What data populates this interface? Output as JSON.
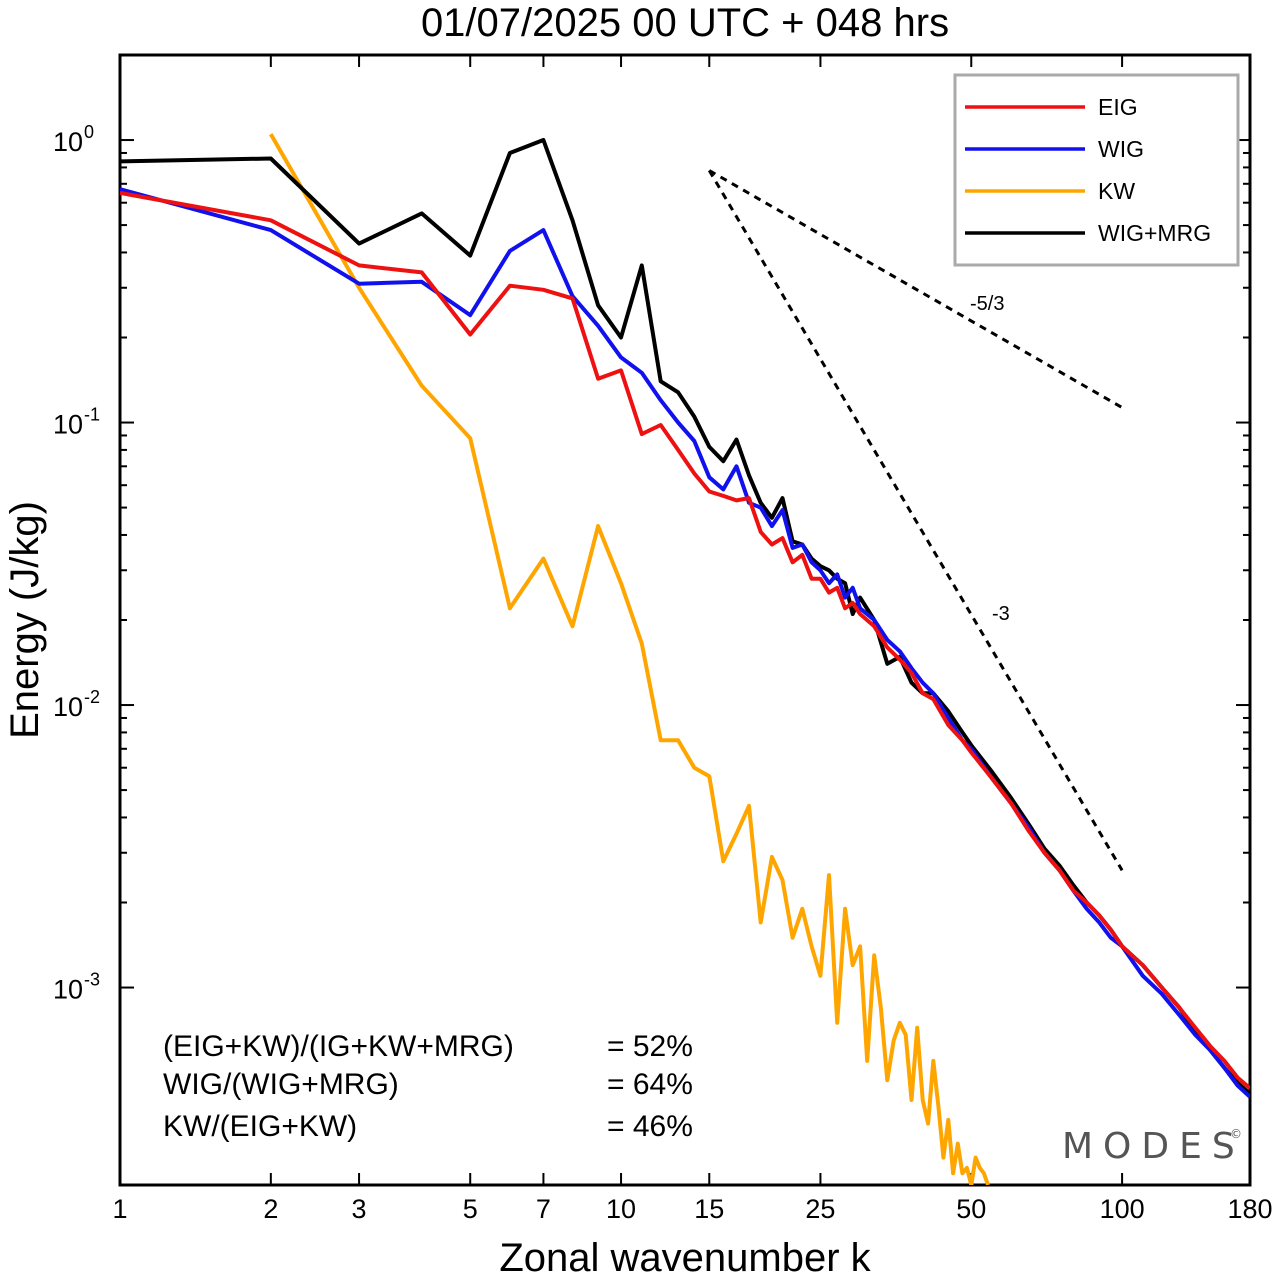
{
  "chart_data": {
    "type": "line",
    "title": "01/07/2025  00 UTC  + 048 hrs",
    "xlabel": "Zonal wavenumber k",
    "ylabel": "Energy (J/kg)",
    "xscale": "log",
    "yscale": "log",
    "xlim": [
      1,
      180
    ],
    "ylim": [
      0.0002,
      2.0
    ],
    "x_ticks": [
      1,
      2,
      3,
      5,
      7,
      10,
      15,
      25,
      50,
      100,
      180
    ],
    "x_tick_labels": [
      "1",
      "2",
      "3",
      "5",
      "7",
      "10",
      "15",
      "25",
      "50",
      "100",
      "180"
    ],
    "y_ticks": [
      {
        "value": 1,
        "base": "10",
        "exp": "0"
      },
      {
        "value": 0.1,
        "base": "10",
        "exp": "-1"
      },
      {
        "value": 0.01,
        "base": "10",
        "exp": "-2"
      },
      {
        "value": 0.001,
        "base": "10",
        "exp": "-3"
      }
    ],
    "legend_position": "top-right",
    "series": [
      {
        "name": "EIG",
        "color": "#ee1111",
        "points": [
          [
            1,
            0.65
          ],
          [
            2,
            0.52
          ],
          [
            3,
            0.36
          ],
          [
            4,
            0.34
          ],
          [
            5,
            0.205
          ],
          [
            6,
            0.305
          ],
          [
            7,
            0.295
          ],
          [
            8,
            0.275
          ],
          [
            9,
            0.143
          ],
          [
            10,
            0.153
          ],
          [
            11,
            0.091
          ],
          [
            12,
            0.098
          ],
          [
            13,
            0.08
          ],
          [
            14,
            0.066
          ],
          [
            15,
            0.057
          ],
          [
            16,
            0.055
          ],
          [
            17,
            0.053
          ],
          [
            18,
            0.054
          ],
          [
            19,
            0.041
          ],
          [
            20,
            0.037
          ],
          [
            21,
            0.039
          ],
          [
            22,
            0.032
          ],
          [
            23,
            0.034
          ],
          [
            24,
            0.028
          ],
          [
            25,
            0.028
          ],
          [
            26,
            0.025
          ],
          [
            27,
            0.026
          ],
          [
            28,
            0.022
          ],
          [
            29,
            0.023
          ],
          [
            30,
            0.021
          ],
          [
            32,
            0.019
          ],
          [
            34,
            0.016
          ],
          [
            36,
            0.0145
          ],
          [
            38,
            0.013
          ],
          [
            40,
            0.011
          ],
          [
            42,
            0.0105
          ],
          [
            45,
            0.0085
          ],
          [
            48,
            0.0075
          ],
          [
            50,
            0.0068
          ],
          [
            55,
            0.0055
          ],
          [
            60,
            0.0045
          ],
          [
            65,
            0.0036
          ],
          [
            70,
            0.003
          ],
          [
            75,
            0.0026
          ],
          [
            80,
            0.0022
          ],
          [
            85,
            0.002
          ],
          [
            90,
            0.0018
          ],
          [
            95,
            0.0016
          ],
          [
            100,
            0.0014
          ],
          [
            110,
            0.0012
          ],
          [
            120,
            0.001
          ],
          [
            130,
            0.00085
          ],
          [
            140,
            0.00072
          ],
          [
            150,
            0.00062
          ],
          [
            160,
            0.00055
          ],
          [
            170,
            0.00048
          ],
          [
            180,
            0.00044
          ]
        ]
      },
      {
        "name": "WIG",
        "color": "#1111ee",
        "points": [
          [
            1,
            0.67
          ],
          [
            2,
            0.48
          ],
          [
            3,
            0.31
          ],
          [
            4,
            0.315
          ],
          [
            5,
            0.24
          ],
          [
            6,
            0.405
          ],
          [
            7,
            0.48
          ],
          [
            8,
            0.28
          ],
          [
            9,
            0.22
          ],
          [
            10,
            0.17
          ],
          [
            11,
            0.15
          ],
          [
            12,
            0.12
          ],
          [
            13,
            0.1
          ],
          [
            14,
            0.086
          ],
          [
            15,
            0.064
          ],
          [
            16,
            0.058
          ],
          [
            17,
            0.07
          ],
          [
            18,
            0.052
          ],
          [
            19,
            0.05
          ],
          [
            20,
            0.043
          ],
          [
            21,
            0.049
          ],
          [
            22,
            0.036
          ],
          [
            23,
            0.037
          ],
          [
            24,
            0.032
          ],
          [
            25,
            0.03
          ],
          [
            26,
            0.027
          ],
          [
            27,
            0.029
          ],
          [
            28,
            0.024
          ],
          [
            29,
            0.026
          ],
          [
            30,
            0.022
          ],
          [
            32,
            0.02
          ],
          [
            34,
            0.017
          ],
          [
            36,
            0.0155
          ],
          [
            38,
            0.0135
          ],
          [
            40,
            0.012
          ],
          [
            42,
            0.011
          ],
          [
            45,
            0.009
          ],
          [
            48,
            0.0075
          ],
          [
            50,
            0.007
          ],
          [
            55,
            0.0055
          ],
          [
            60,
            0.0045
          ],
          [
            65,
            0.0037
          ],
          [
            70,
            0.003
          ],
          [
            75,
            0.0026
          ],
          [
            80,
            0.0022
          ],
          [
            85,
            0.0019
          ],
          [
            90,
            0.0017
          ],
          [
            95,
            0.0015
          ],
          [
            100,
            0.0014
          ],
          [
            110,
            0.0011
          ],
          [
            120,
            0.00095
          ],
          [
            130,
            0.0008
          ],
          [
            140,
            0.00068
          ],
          [
            150,
            0.0006
          ],
          [
            160,
            0.00052
          ],
          [
            170,
            0.00045
          ],
          [
            180,
            0.00041
          ]
        ]
      },
      {
        "name": "KW",
        "color": "#ffa500",
        "points": [
          [
            2,
            1.05
          ],
          [
            3,
            0.3
          ],
          [
            4,
            0.135
          ],
          [
            5,
            0.088
          ],
          [
            6,
            0.022
          ],
          [
            7,
            0.033
          ],
          [
            8,
            0.019
          ],
          [
            9,
            0.043
          ],
          [
            10,
            0.027
          ],
          [
            11,
            0.0165
          ],
          [
            12,
            0.0075
          ],
          [
            13,
            0.0075
          ],
          [
            14,
            0.006
          ],
          [
            15,
            0.0056
          ],
          [
            16,
            0.0028
          ],
          [
            17,
            0.0035
          ],
          [
            18,
            0.0044
          ],
          [
            19,
            0.0017
          ],
          [
            20,
            0.0029
          ],
          [
            21,
            0.0024
          ],
          [
            22,
            0.0015
          ],
          [
            23,
            0.0019
          ],
          [
            24,
            0.0014
          ],
          [
            25,
            0.0011
          ],
          [
            26,
            0.0025
          ],
          [
            27,
            0.00075
          ],
          [
            28,
            0.0019
          ],
          [
            29,
            0.0012
          ],
          [
            30,
            0.0014
          ],
          [
            31,
            0.00055
          ],
          [
            32,
            0.0013
          ],
          [
            33,
            0.00085
          ],
          [
            34,
            0.00047
          ],
          [
            35,
            0.00065
          ],
          [
            36,
            0.00075
          ],
          [
            37,
            0.00068
          ],
          [
            38,
            0.0004
          ],
          [
            39,
            0.00072
          ],
          [
            40,
            0.0004
          ],
          [
            41,
            0.00033
          ],
          [
            42,
            0.00055
          ],
          [
            43,
            0.00038
          ],
          [
            44,
            0.00025
          ],
          [
            45,
            0.00034
          ],
          [
            46,
            0.00022
          ],
          [
            47,
            0.00028
          ],
          [
            48,
            0.00022
          ],
          [
            49,
            0.00023
          ],
          [
            50,
            0.0002
          ],
          [
            51,
            0.00025
          ],
          [
            52,
            0.00023
          ],
          [
            53,
            0.00022
          ],
          [
            54,
            0.0002
          ]
        ]
      },
      {
        "name": "WIG+MRG",
        "color": "#000000",
        "points": [
          [
            1,
            0.84
          ],
          [
            2,
            0.86
          ],
          [
            3,
            0.43
          ],
          [
            4,
            0.55
          ],
          [
            5,
            0.39
          ],
          [
            6,
            0.9
          ],
          [
            7,
            1.0
          ],
          [
            8,
            0.52
          ],
          [
            9,
            0.26
          ],
          [
            10,
            0.2
          ],
          [
            11,
            0.36
          ],
          [
            12,
            0.14
          ],
          [
            13,
            0.128
          ],
          [
            14,
            0.105
          ],
          [
            15,
            0.082
          ],
          [
            16,
            0.073
          ],
          [
            17,
            0.087
          ],
          [
            18,
            0.065
          ],
          [
            19,
            0.052
          ],
          [
            20,
            0.046
          ],
          [
            21,
            0.054
          ],
          [
            22,
            0.038
          ],
          [
            23,
            0.037
          ],
          [
            24,
            0.033
          ],
          [
            25,
            0.031
          ],
          [
            26,
            0.03
          ],
          [
            27,
            0.028
          ],
          [
            28,
            0.027
          ],
          [
            29,
            0.021
          ],
          [
            30,
            0.024
          ],
          [
            32,
            0.02
          ],
          [
            34,
            0.014
          ],
          [
            36,
            0.0148
          ],
          [
            38,
            0.012
          ],
          [
            40,
            0.011
          ],
          [
            42,
            0.011
          ],
          [
            45,
            0.0095
          ],
          [
            48,
            0.008
          ],
          [
            50,
            0.0072
          ],
          [
            55,
            0.0058
          ],
          [
            60,
            0.0047
          ],
          [
            65,
            0.0038
          ],
          [
            70,
            0.0031
          ],
          [
            75,
            0.0027
          ],
          [
            80,
            0.0023
          ],
          [
            85,
            0.002
          ],
          [
            90,
            0.0018
          ],
          [
            95,
            0.0016
          ],
          [
            100,
            0.0014
          ],
          [
            110,
            0.0012
          ],
          [
            120,
            0.001
          ],
          [
            130,
            0.00085
          ],
          [
            140,
            0.0007
          ],
          [
            150,
            0.0006
          ],
          [
            160,
            0.00052
          ],
          [
            170,
            0.00046
          ],
          [
            180,
            0.00042
          ]
        ]
      }
    ],
    "reference_lines": [
      {
        "label": "-5/3",
        "from": [
          15,
          0.78
        ],
        "to": [
          100,
          0.113
        ]
      },
      {
        "label": "-3",
        "from": [
          15,
          0.78
        ],
        "to": [
          100,
          0.0026
        ]
      }
    ],
    "annotations": [
      {
        "label": "(EIG+KW)/(IG+KW+MRG)",
        "value": "= 52%"
      },
      {
        "label": "WIG/(WIG+MRG)",
        "value": "= 64%"
      },
      {
        "label": "KW/(EIG+KW)",
        "value": "= 46%"
      }
    ],
    "brand": "MODES",
    "brand_mark": "©"
  }
}
